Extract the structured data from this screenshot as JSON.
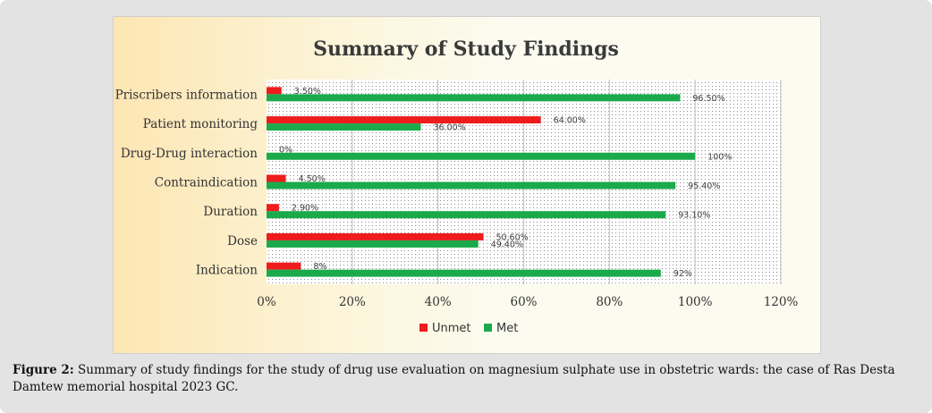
{
  "chart_data": {
    "type": "bar",
    "orientation": "horizontal",
    "title": "Summary of Study Findings",
    "categories": [
      "Priscribers information",
      "Patient monitoring",
      "Drug-Drug interaction",
      "Contraindication",
      "Duration",
      "Dose",
      "Indication"
    ],
    "series": [
      {
        "name": "Unmet",
        "color": "#ee1c1c",
        "values": [
          3.5,
          64.0,
          0,
          4.5,
          2.9,
          50.6,
          8
        ],
        "labels": [
          "3.50%",
          "64.00%",
          "0%",
          "4.50%",
          "2.90%",
          "50.60%",
          "8%"
        ]
      },
      {
        "name": "Met",
        "color": "#1aaa4c",
        "values": [
          96.5,
          36.0,
          100,
          95.4,
          93.1,
          49.4,
          92
        ],
        "labels": [
          "96.50%",
          "36.00%",
          "100%",
          "95.40%",
          "93.10%",
          "49.40%",
          "92%"
        ]
      }
    ],
    "xlim": [
      0,
      120
    ],
    "xticks": [
      "0%",
      "20%",
      "40%",
      "60%",
      "80%",
      "100%",
      "120%"
    ],
    "xtick_values": [
      0,
      20,
      40,
      60,
      80,
      100,
      120
    ],
    "grid": true,
    "legend_position": "bottom"
  },
  "caption": {
    "label": "Figure 2:",
    "text": " Summary of study findings for the study of drug use evaluation on magnesium sulphate use in obstetric wards: the case of Ras Desta Damtew memorial hospital 2023 GC."
  },
  "colors": {
    "background": "#e3e3e3",
    "unmet": "#ee1c1c",
    "met": "#1aaa4c"
  }
}
